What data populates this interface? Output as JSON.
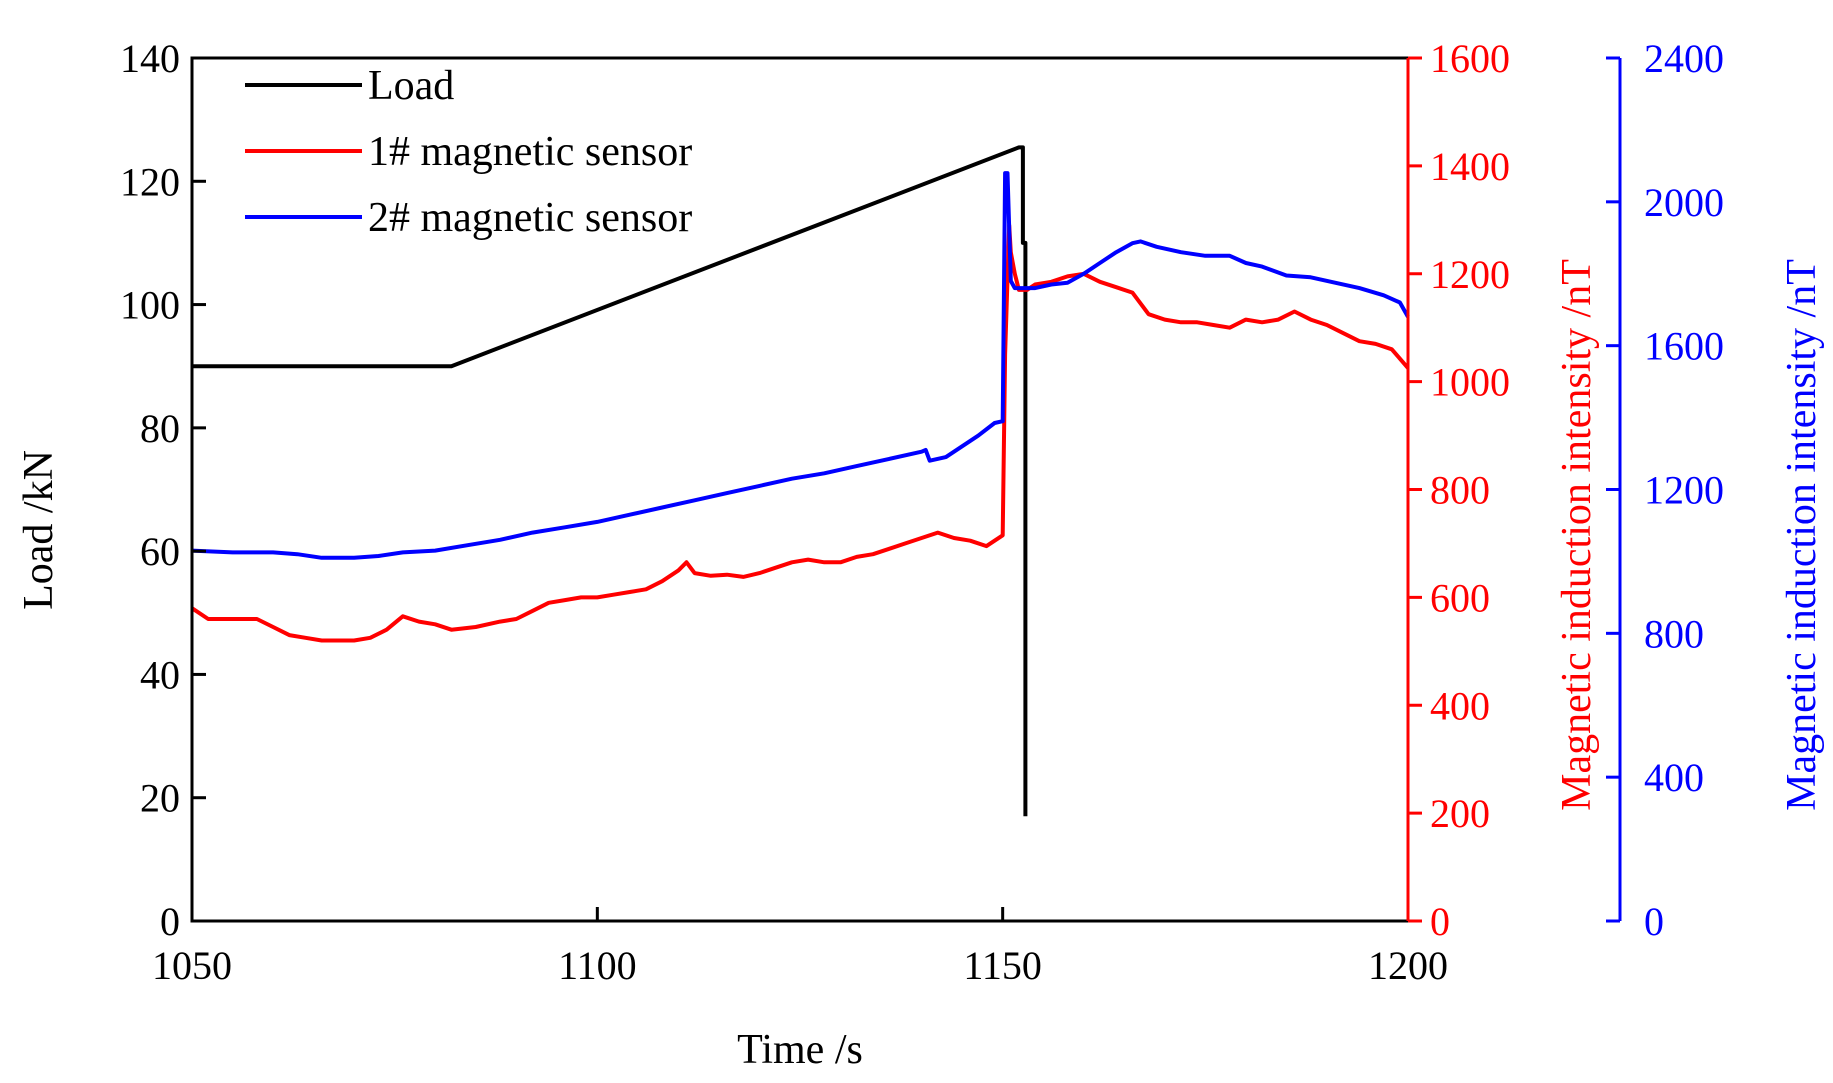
{
  "chart_data": {
    "type": "line",
    "xlabel": "Time /s",
    "ylabel_left": "Load /kN",
    "ylabel_right1": "Magnetic induction intensity /nT",
    "ylabel_right2": "Magnetic induction intensity /nT",
    "xlim": [
      1050,
      1200
    ],
    "ylim_left": [
      0,
      140
    ],
    "ylim_right1": [
      0,
      1600
    ],
    "ylim_right2": [
      0,
      2400
    ],
    "xticks": [
      1050,
      1100,
      1150,
      1200
    ],
    "yticks_left": [
      0,
      20,
      40,
      60,
      80,
      100,
      120,
      140
    ],
    "yticks_right1": [
      0,
      200,
      400,
      600,
      800,
      1000,
      1200,
      1400,
      1600
    ],
    "yticks_right2": [
      0,
      400,
      800,
      1200,
      1600,
      2000,
      2400
    ],
    "grid": false,
    "legend_position": "top-left",
    "colors": {
      "load": "#000000",
      "sensor1": "#ff0000",
      "sensor2": "#0000ff"
    },
    "series": [
      {
        "name": "Load",
        "axis": "left",
        "x": [
          1050,
          1082,
          1152,
          1152.5,
          1152.5,
          1152.8,
          1152.8
        ],
        "y": [
          90,
          90,
          125.5,
          125.5,
          110,
          110,
          17
        ]
      },
      {
        "name": "1# magnetic sensor",
        "axis": "right1",
        "x": [
          1050,
          1052,
          1055,
          1058,
          1060,
          1062,
          1064,
          1066,
          1068,
          1070,
          1072,
          1074,
          1076,
          1078,
          1080,
          1082,
          1085,
          1088,
          1090,
          1092,
          1094,
          1096,
          1098,
          1100,
          1102,
          1104,
          1106,
          1108,
          1110,
          1111,
          1112,
          1114,
          1116,
          1118,
          1120,
          1122,
          1124,
          1126,
          1128,
          1130,
          1132,
          1134,
          1136,
          1138,
          1140,
          1142,
          1144,
          1146,
          1148,
          1150,
          1150.3,
          1150.8,
          1151,
          1151.5,
          1152,
          1153,
          1154,
          1156,
          1158,
          1160,
          1162,
          1164,
          1166,
          1168,
          1170,
          1172,
          1174,
          1176,
          1178,
          1180,
          1182,
          1184,
          1186,
          1188,
          1190,
          1192,
          1194,
          1196,
          1198,
          1200
        ],
        "y": [
          580,
          560,
          560,
          560,
          545,
          530,
          525,
          520,
          520,
          520,
          525,
          540,
          565,
          555,
          550,
          540,
          545,
          555,
          560,
          575,
          590,
          595,
          600,
          600,
          605,
          610,
          615,
          630,
          650,
          665,
          645,
          640,
          642,
          638,
          645,
          655,
          665,
          670,
          665,
          665,
          675,
          680,
          690,
          700,
          710,
          720,
          710,
          705,
          695,
          715,
          1050,
          1290,
          1240,
          1200,
          1170,
          1170,
          1180,
          1185,
          1195,
          1200,
          1185,
          1175,
          1165,
          1125,
          1115,
          1110,
          1110,
          1105,
          1100,
          1115,
          1110,
          1115,
          1130,
          1115,
          1105,
          1090,
          1075,
          1070,
          1060,
          1025
        ]
      },
      {
        "name": "2# magnetic sensor",
        "axis": "right2",
        "x": [
          1050,
          1055,
          1060,
          1063,
          1066,
          1070,
          1073,
          1076,
          1080,
          1084,
          1088,
          1092,
          1096,
          1100,
          1104,
          1108,
          1112,
          1116,
          1120,
          1124,
          1128,
          1132,
          1136,
          1140,
          1140.5,
          1141,
          1143,
          1145,
          1147,
          1149,
          1150,
          1150.3,
          1150.6,
          1151,
          1151.5,
          1152,
          1154,
          1156,
          1158,
          1160,
          1162,
          1164,
          1166,
          1167,
          1169,
          1172,
          1175,
          1178,
          1180,
          1182,
          1185,
          1188,
          1191,
          1194,
          1197,
          1199,
          1200
        ],
        "y": [
          1030,
          1025,
          1025,
          1020,
          1010,
          1010,
          1015,
          1025,
          1030,
          1045,
          1060,
          1080,
          1095,
          1110,
          1130,
          1150,
          1170,
          1190,
          1210,
          1230,
          1245,
          1265,
          1285,
          1305,
          1310,
          1280,
          1290,
          1320,
          1350,
          1385,
          1390,
          2080,
          2080,
          1780,
          1760,
          1760,
          1760,
          1770,
          1775,
          1800,
          1830,
          1860,
          1885,
          1890,
          1875,
          1860,
          1850,
          1850,
          1830,
          1820,
          1795,
          1790,
          1775,
          1760,
          1740,
          1720,
          1680
        ]
      }
    ]
  }
}
